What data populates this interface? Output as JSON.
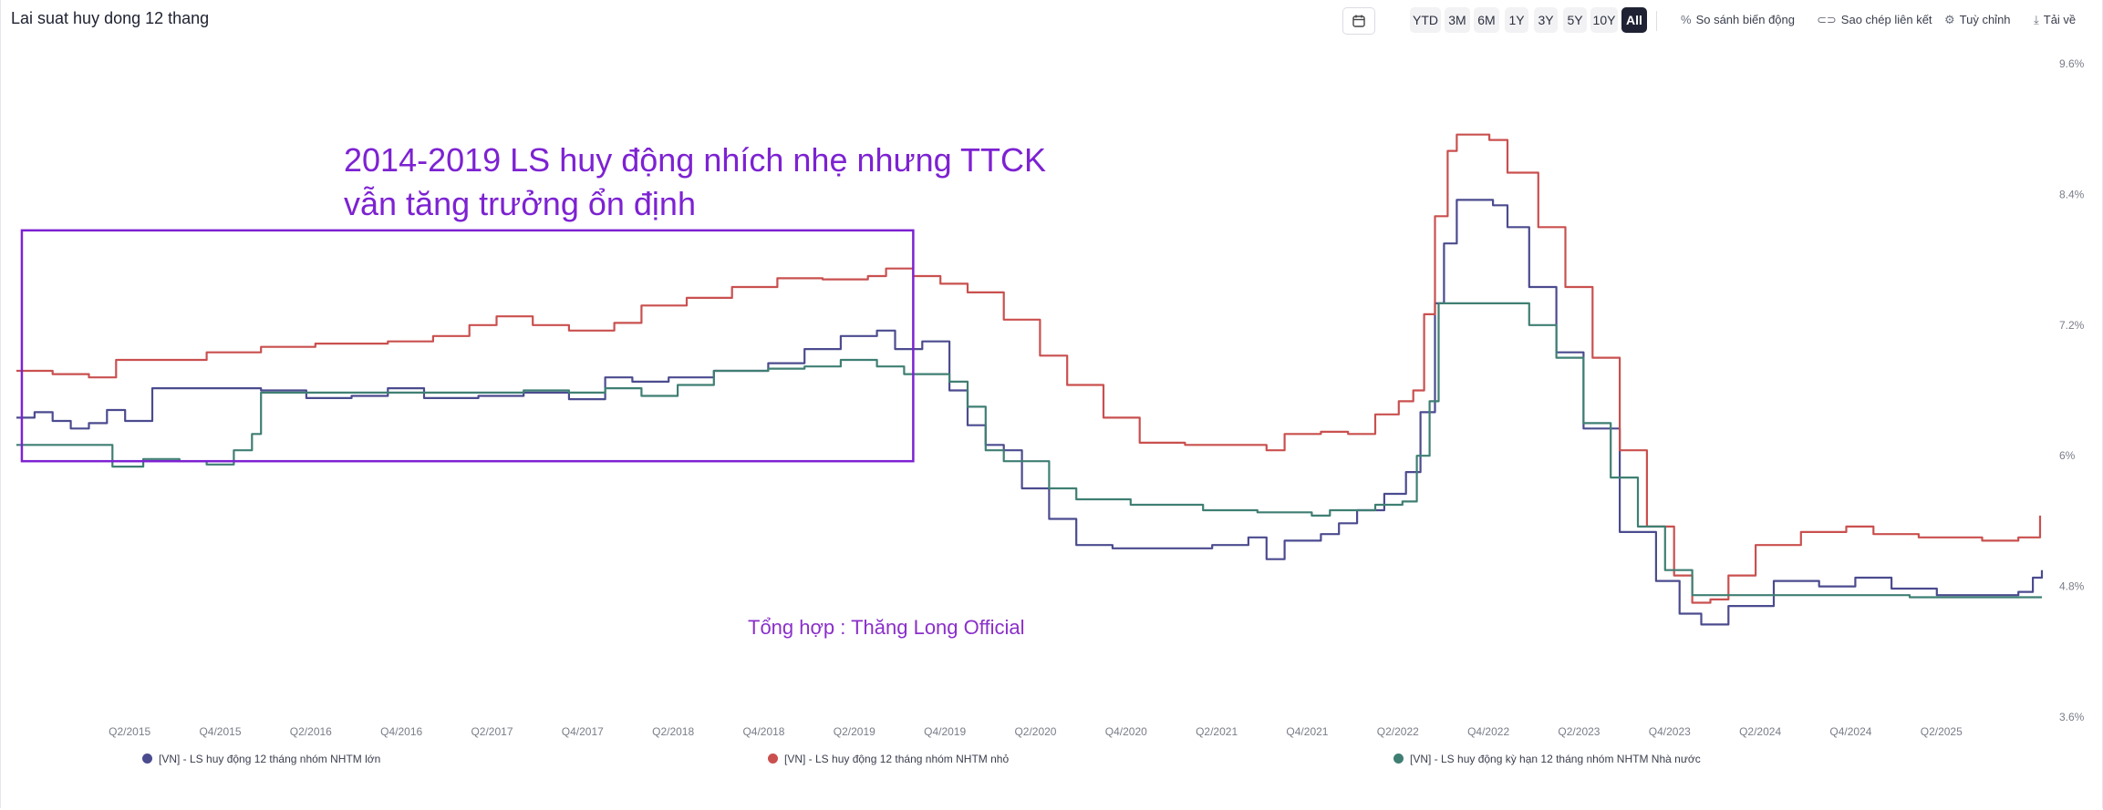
{
  "header": {
    "title": "Lai suat huy dong 12 thang"
  },
  "toolbar": {
    "ranges": [
      "YTD",
      "3M",
      "6M",
      "1Y",
      "3Y",
      "5Y",
      "10Y",
      "All"
    ],
    "active_range": "All",
    "compare_label": "So sánh biến động",
    "copy_link_label": "Sao chép liên kết",
    "customize_label": "Tuỳ chỉnh",
    "download_label": "Tải về"
  },
  "annotations": {
    "main_line1": "2014-2019 LS huy động nhích nhẹ nhưng TTCK",
    "main_line2": "vẫn tăng trưởng ổn định",
    "credit": "Tổng hợp : Thăng Long Official",
    "color": "#7d22d2"
  },
  "chart_data": {
    "type": "line",
    "title": "Lai suat huy dong 12 thang",
    "xlim": [
      2014.75,
      2025.95
    ],
    "ylim": [
      3.6,
      9.6
    ],
    "y_ticks": [
      "9.6%",
      "8.4%",
      "7.2%",
      "6%",
      "4.8%",
      "3.6%"
    ],
    "x_ticks": [
      "Q2/2015",
      "Q4/2015",
      "Q2/2016",
      "Q4/2016",
      "Q2/2017",
      "Q4/2017",
      "Q2/2018",
      "Q4/2018",
      "Q2/2019",
      "Q4/2019",
      "Q2/2020",
      "Q4/2020",
      "Q2/2021",
      "Q4/2021",
      "Q2/2022",
      "Q4/2022",
      "Q2/2023",
      "Q4/2023",
      "Q2/2024",
      "Q4/2024",
      "Q2/2025"
    ],
    "highlight_box": {
      "x_start": 2014.78,
      "x_end": 2019.7,
      "y_low": 5.95,
      "y_high": 8.07
    },
    "legend_position": "bottom",
    "series": [
      {
        "name": "[VN] - LS huy động 12 tháng nhóm NHTM lớn",
        "color": "#4b4b8f",
        "points": [
          [
            2014.75,
            6.35
          ],
          [
            2014.85,
            6.4
          ],
          [
            2014.95,
            6.32
          ],
          [
            2015.05,
            6.25
          ],
          [
            2015.15,
            6.3
          ],
          [
            2015.25,
            6.42
          ],
          [
            2015.35,
            6.32
          ],
          [
            2015.5,
            6.62
          ],
          [
            2015.7,
            6.62
          ],
          [
            2015.9,
            6.62
          ],
          [
            2016.1,
            6.6
          ],
          [
            2016.35,
            6.53
          ],
          [
            2016.6,
            6.55
          ],
          [
            2016.8,
            6.62
          ],
          [
            2017.0,
            6.53
          ],
          [
            2017.3,
            6.55
          ],
          [
            2017.55,
            6.58
          ],
          [
            2017.8,
            6.52
          ],
          [
            2018.0,
            6.72
          ],
          [
            2018.15,
            6.68
          ],
          [
            2018.35,
            6.72
          ],
          [
            2018.6,
            6.78
          ],
          [
            2018.9,
            6.85
          ],
          [
            2019.1,
            6.98
          ],
          [
            2019.3,
            7.1
          ],
          [
            2019.5,
            7.15
          ],
          [
            2019.6,
            6.98
          ],
          [
            2019.75,
            7.05
          ],
          [
            2019.9,
            6.6
          ],
          [
            2020.0,
            6.28
          ],
          [
            2020.1,
            6.1
          ],
          [
            2020.2,
            6.05
          ],
          [
            2020.3,
            5.7
          ],
          [
            2020.45,
            5.42
          ],
          [
            2020.6,
            5.18
          ],
          [
            2020.8,
            5.15
          ],
          [
            2021.1,
            5.15
          ],
          [
            2021.35,
            5.18
          ],
          [
            2021.55,
            5.25
          ],
          [
            2021.65,
            5.05
          ],
          [
            2021.75,
            5.22
          ],
          [
            2021.95,
            5.28
          ],
          [
            2022.05,
            5.38
          ],
          [
            2022.15,
            5.5
          ],
          [
            2022.3,
            5.65
          ],
          [
            2022.42,
            5.85
          ],
          [
            2022.5,
            6.4
          ],
          [
            2022.58,
            7.4
          ],
          [
            2022.63,
            7.95
          ],
          [
            2022.7,
            8.35
          ],
          [
            2022.9,
            8.3
          ],
          [
            2022.98,
            8.1
          ],
          [
            2023.1,
            7.55
          ],
          [
            2023.25,
            6.95
          ],
          [
            2023.4,
            6.25
          ],
          [
            2023.6,
            5.3
          ],
          [
            2023.8,
            4.85
          ],
          [
            2023.93,
            4.55
          ],
          [
            2024.05,
            4.45
          ],
          [
            2024.2,
            4.62
          ],
          [
            2024.45,
            4.85
          ],
          [
            2024.7,
            4.8
          ],
          [
            2024.9,
            4.88
          ],
          [
            2025.1,
            4.78
          ],
          [
            2025.35,
            4.72
          ],
          [
            2025.6,
            4.72
          ],
          [
            2025.8,
            4.75
          ],
          [
            2025.88,
            4.88
          ],
          [
            2025.93,
            4.95
          ]
        ]
      },
      {
        "name": "[VN] - LS huy động 12 tháng nhóm NHTM nhỏ",
        "color": "#c9504f",
        "points": [
          [
            2014.75,
            6.78
          ],
          [
            2014.95,
            6.75
          ],
          [
            2015.15,
            6.72
          ],
          [
            2015.3,
            6.88
          ],
          [
            2015.5,
            6.88
          ],
          [
            2015.8,
            6.95
          ],
          [
            2016.1,
            7.0
          ],
          [
            2016.4,
            7.03
          ],
          [
            2016.8,
            7.05
          ],
          [
            2017.05,
            7.1
          ],
          [
            2017.25,
            7.2
          ],
          [
            2017.4,
            7.28
          ],
          [
            2017.6,
            7.2
          ],
          [
            2017.8,
            7.15
          ],
          [
            2018.05,
            7.22
          ],
          [
            2018.2,
            7.38
          ],
          [
            2018.45,
            7.45
          ],
          [
            2018.7,
            7.55
          ],
          [
            2018.95,
            7.63
          ],
          [
            2019.2,
            7.62
          ],
          [
            2019.45,
            7.65
          ],
          [
            2019.55,
            7.72
          ],
          [
            2019.7,
            7.65
          ],
          [
            2019.85,
            7.58
          ],
          [
            2020.0,
            7.5
          ],
          [
            2020.2,
            7.25
          ],
          [
            2020.4,
            6.92
          ],
          [
            2020.55,
            6.65
          ],
          [
            2020.75,
            6.35
          ],
          [
            2020.95,
            6.12
          ],
          [
            2021.2,
            6.1
          ],
          [
            2021.5,
            6.1
          ],
          [
            2021.65,
            6.05
          ],
          [
            2021.75,
            6.2
          ],
          [
            2021.95,
            6.22
          ],
          [
            2022.1,
            6.2
          ],
          [
            2022.25,
            6.38
          ],
          [
            2022.38,
            6.5
          ],
          [
            2022.46,
            6.6
          ],
          [
            2022.52,
            7.3
          ],
          [
            2022.58,
            8.2
          ],
          [
            2022.65,
            8.8
          ],
          [
            2022.7,
            8.95
          ],
          [
            2022.88,
            8.9
          ],
          [
            2022.98,
            8.6
          ],
          [
            2023.15,
            8.1
          ],
          [
            2023.3,
            7.55
          ],
          [
            2023.45,
            6.9
          ],
          [
            2023.6,
            6.05
          ],
          [
            2023.75,
            5.35
          ],
          [
            2023.9,
            4.9
          ],
          [
            2024.0,
            4.65
          ],
          [
            2024.1,
            4.68
          ],
          [
            2024.2,
            4.9
          ],
          [
            2024.35,
            5.18
          ],
          [
            2024.6,
            5.3
          ],
          [
            2024.85,
            5.35
          ],
          [
            2025.0,
            5.28
          ],
          [
            2025.25,
            5.25
          ],
          [
            2025.6,
            5.22
          ],
          [
            2025.8,
            5.25
          ],
          [
            2025.92,
            5.45
          ]
        ]
      },
      {
        "name": "[VN] - LS huy động kỳ hạn 12 tháng nhóm NHTM Nhà nước",
        "color": "#3f7f73",
        "points": [
          [
            2014.75,
            6.1
          ],
          [
            2015.0,
            6.1
          ],
          [
            2015.2,
            6.1
          ],
          [
            2015.28,
            5.9
          ],
          [
            2015.45,
            5.97
          ],
          [
            2015.65,
            5.95
          ],
          [
            2015.8,
            5.92
          ],
          [
            2015.95,
            6.05
          ],
          [
            2016.05,
            6.2
          ],
          [
            2016.1,
            6.58
          ],
          [
            2016.3,
            6.58
          ],
          [
            2016.6,
            6.58
          ],
          [
            2016.9,
            6.58
          ],
          [
            2017.2,
            6.58
          ],
          [
            2017.55,
            6.6
          ],
          [
            2017.8,
            6.58
          ],
          [
            2018.0,
            6.62
          ],
          [
            2018.2,
            6.55
          ],
          [
            2018.4,
            6.65
          ],
          [
            2018.6,
            6.78
          ],
          [
            2018.9,
            6.8
          ],
          [
            2019.1,
            6.82
          ],
          [
            2019.3,
            6.88
          ],
          [
            2019.5,
            6.82
          ],
          [
            2019.65,
            6.75
          ],
          [
            2019.9,
            6.68
          ],
          [
            2020.0,
            6.45
          ],
          [
            2020.1,
            6.05
          ],
          [
            2020.2,
            5.95
          ],
          [
            2020.35,
            5.95
          ],
          [
            2020.45,
            5.7
          ],
          [
            2020.6,
            5.6
          ],
          [
            2020.9,
            5.55
          ],
          [
            2021.3,
            5.5
          ],
          [
            2021.6,
            5.48
          ],
          [
            2021.9,
            5.45
          ],
          [
            2022.0,
            5.5
          ],
          [
            2022.25,
            5.55
          ],
          [
            2022.4,
            5.58
          ],
          [
            2022.48,
            6.0
          ],
          [
            2022.55,
            6.5
          ],
          [
            2022.6,
            7.4
          ],
          [
            2022.95,
            7.4
          ],
          [
            2023.1,
            7.2
          ],
          [
            2023.25,
            6.9
          ],
          [
            2023.4,
            6.3
          ],
          [
            2023.55,
            5.8
          ],
          [
            2023.7,
            5.35
          ],
          [
            2023.85,
            4.95
          ],
          [
            2024.0,
            4.72
          ],
          [
            2024.3,
            4.72
          ],
          [
            2024.6,
            4.72
          ],
          [
            2024.9,
            4.72
          ],
          [
            2025.2,
            4.7
          ],
          [
            2025.5,
            4.7
          ],
          [
            2025.93,
            4.7
          ]
        ]
      }
    ]
  }
}
